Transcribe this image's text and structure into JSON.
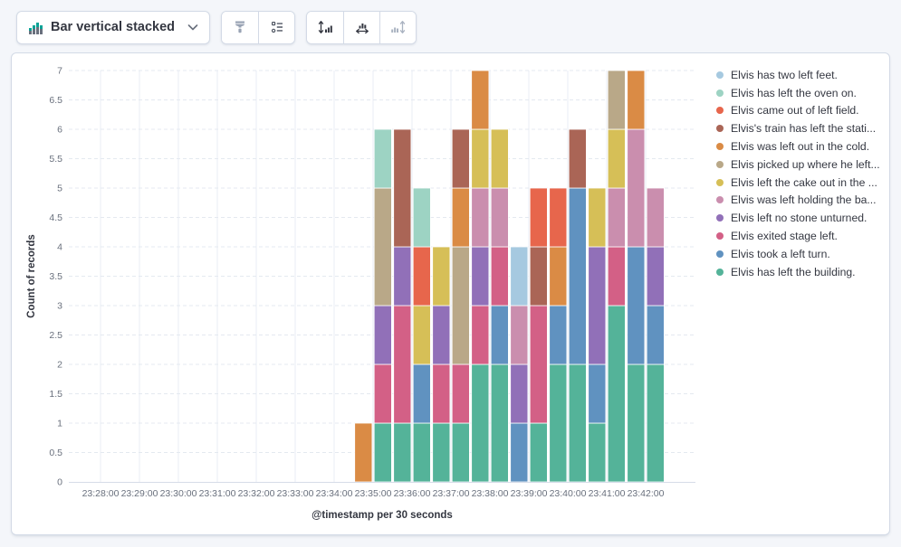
{
  "toolbar": {
    "chart_type_label": "Bar vertical stacked",
    "chart_type_icon": "bar-vertical-stacked-icon",
    "icon_buttons": [
      {
        "name": "visual-options",
        "icon": "paint-brush-icon",
        "disabled": false
      },
      {
        "name": "legend-settings",
        "icon": "legend-list-icon",
        "disabled": false
      },
      {
        "name": "left-axis",
        "icon": "axis-left-icon",
        "disabled": false
      },
      {
        "name": "bottom-axis",
        "icon": "axis-bottom-icon",
        "disabled": false
      },
      {
        "name": "right-axis",
        "icon": "axis-right-icon",
        "disabled": true
      }
    ]
  },
  "colors": {
    "page_background": "#f4f6fa",
    "panel_background": "#ffffff",
    "panel_border": "#d3dae6",
    "tick_text": "#69707d",
    "axis_title_text": "#343741",
    "grid_horizontal": "#e4e9f0",
    "grid_vertical": "#e9eef5",
    "axis_line": "#d6dce8",
    "icon_default": "#505763",
    "icon_dark": "#343741",
    "icon_light": "#98a2b3",
    "icon_disabled": "#aab3c1"
  },
  "chart_data": {
    "type": "bar",
    "subtype": "vertical_stacked",
    "title": "",
    "xlabel": "@timestamp per 30 seconds",
    "ylabel": "Count of records",
    "grid": true,
    "legend_position": "right",
    "stack_order": "reverse_of_legend",
    "y_axis": {
      "min": 0,
      "max": 7,
      "tick_interval": 0.5
    },
    "x_axis": {
      "tick_labels": [
        "23:28:00",
        "23:29:00",
        "23:30:00",
        "23:31:00",
        "23:32:00",
        "23:33:00",
        "23:34:00",
        "23:35:00",
        "23:36:00",
        "23:37:00",
        "23:38:00",
        "23:39:00",
        "23:40:00",
        "23:41:00",
        "23:42:00"
      ],
      "bucket_seconds": 30
    },
    "categories": [
      "23:34:30",
      "23:35:00",
      "23:35:30",
      "23:36:00",
      "23:36:30",
      "23:37:00",
      "23:37:30",
      "23:38:00",
      "23:38:30",
      "23:39:00",
      "23:39:30",
      "23:40:00",
      "23:40:30",
      "23:41:00",
      "23:41:30",
      "23:42:00"
    ],
    "series": [
      {
        "name": "Elvis has two left feet.",
        "color": "#a6c9e0",
        "values": [
          0,
          0,
          0,
          0,
          0,
          0,
          0,
          0,
          1,
          0,
          0,
          0,
          0,
          0,
          0,
          0
        ]
      },
      {
        "name": "Elvis has left the oven on.",
        "color": "#9dd3c3",
        "values": [
          0,
          1,
          0,
          1,
          0,
          0,
          0,
          0,
          0,
          0,
          0,
          0,
          0,
          0,
          0,
          0
        ]
      },
      {
        "name": "Elvis came out of left field.",
        "color": "#e7664c",
        "values": [
          0,
          0,
          0,
          1,
          0,
          0,
          0,
          0,
          0,
          1,
          1,
          0,
          0,
          0,
          0,
          0
        ]
      },
      {
        "name": "Elvis's train has left the stati...",
        "color": "#aa6556",
        "values": [
          0,
          0,
          2,
          0,
          0,
          1,
          0,
          0,
          0,
          1,
          0,
          1,
          0,
          0,
          0,
          0
        ]
      },
      {
        "name": "Elvis was left out in the cold.",
        "color": "#da8b45",
        "values": [
          1,
          0,
          0,
          0,
          0,
          1,
          1,
          0,
          0,
          0,
          1,
          0,
          0,
          0,
          1,
          0
        ]
      },
      {
        "name": "Elvis picked up where he left...",
        "color": "#b9a888",
        "values": [
          0,
          2,
          0,
          0,
          0,
          2,
          0,
          0,
          0,
          0,
          0,
          0,
          0,
          1,
          0,
          0
        ]
      },
      {
        "name": "Elvis left the cake out in the ...",
        "color": "#d6bf57",
        "values": [
          0,
          0,
          0,
          1,
          1,
          0,
          1,
          1,
          0,
          0,
          0,
          0,
          1,
          1,
          0,
          0
        ]
      },
      {
        "name": "Elvis was left holding the ba...",
        "color": "#ca8eae",
        "values": [
          0,
          0,
          0,
          0,
          0,
          0,
          1,
          1,
          1,
          0,
          0,
          0,
          0,
          1,
          2,
          1
        ]
      },
      {
        "name": "Elvis left no stone unturned.",
        "color": "#9170b8",
        "values": [
          0,
          1,
          1,
          0,
          1,
          0,
          1,
          0,
          1,
          0,
          0,
          0,
          2,
          0,
          0,
          1
        ]
      },
      {
        "name": "Elvis exited stage left.",
        "color": "#d36086",
        "values": [
          0,
          1,
          2,
          0,
          1,
          1,
          1,
          1,
          0,
          2,
          0,
          0,
          0,
          1,
          0,
          0
        ]
      },
      {
        "name": "Elvis took a left turn.",
        "color": "#6092c0",
        "values": [
          0,
          0,
          0,
          1,
          0,
          0,
          0,
          1,
          1,
          0,
          1,
          3,
          1,
          0,
          2,
          1
        ]
      },
      {
        "name": "Elvis has left the building.",
        "color": "#54b399",
        "values": [
          0,
          1,
          1,
          1,
          1,
          1,
          2,
          2,
          0,
          1,
          2,
          2,
          1,
          3,
          2,
          2
        ]
      }
    ]
  }
}
